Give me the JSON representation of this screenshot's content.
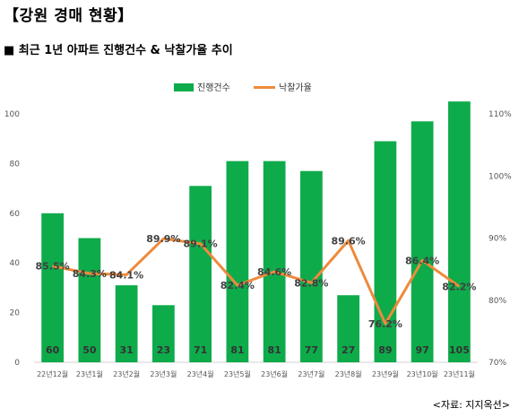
{
  "title": "【강원 경매 현황】",
  "subtitle": "■ 최근 1년 아파트 진행건수 & 낙찰가율 추이",
  "source": "<자료: 지지옥션>",
  "colors": {
    "bar": "#0eab4b",
    "line": "#ee8a3c"
  },
  "chart_data": {
    "type": "bar",
    "categories": [
      "22년12월",
      "23년1월",
      "23년2월",
      "23년3월",
      "23년4월",
      "23년5월",
      "23년6월",
      "23년7월",
      "23년8월",
      "23년9월",
      "23년10월",
      "23년11월"
    ],
    "series": [
      {
        "name": "진행건수",
        "type": "bar",
        "axis": "left",
        "values": [
          60,
          50,
          31,
          23,
          71,
          81,
          81,
          77,
          27,
          89,
          97,
          105
        ],
        "labels": [
          "60",
          "50",
          "31",
          "23",
          "71",
          "81",
          "81",
          "77",
          "27",
          "89",
          "97",
          "105"
        ]
      },
      {
        "name": "낙찰가율",
        "type": "line",
        "axis": "right",
        "values": [
          85.5,
          84.3,
          84.1,
          89.9,
          89.1,
          82.4,
          84.6,
          82.8,
          89.6,
          76.2,
          86.4,
          82.2
        ],
        "labels": [
          "85.5%",
          "84.3%",
          "84.1%",
          "89.9%",
          "89.1%",
          "82.4%",
          "84.6%",
          "82.8%",
          "89.6%",
          "76.2%",
          "86.4%",
          "82.2%"
        ]
      }
    ],
    "y_left": {
      "min": 0,
      "max": 100,
      "ticks": [
        "0",
        "20",
        "40",
        "60",
        "80",
        "100"
      ],
      "tick_values": [
        0,
        20,
        40,
        60,
        80,
        100
      ]
    },
    "y_right": {
      "min": 70,
      "max": 110,
      "ticks": [
        "70%",
        "80%",
        "90%",
        "100%",
        "110%"
      ],
      "tick_values": [
        70,
        80,
        90,
        100,
        110
      ]
    },
    "legend": "top-center",
    "grid": false
  }
}
